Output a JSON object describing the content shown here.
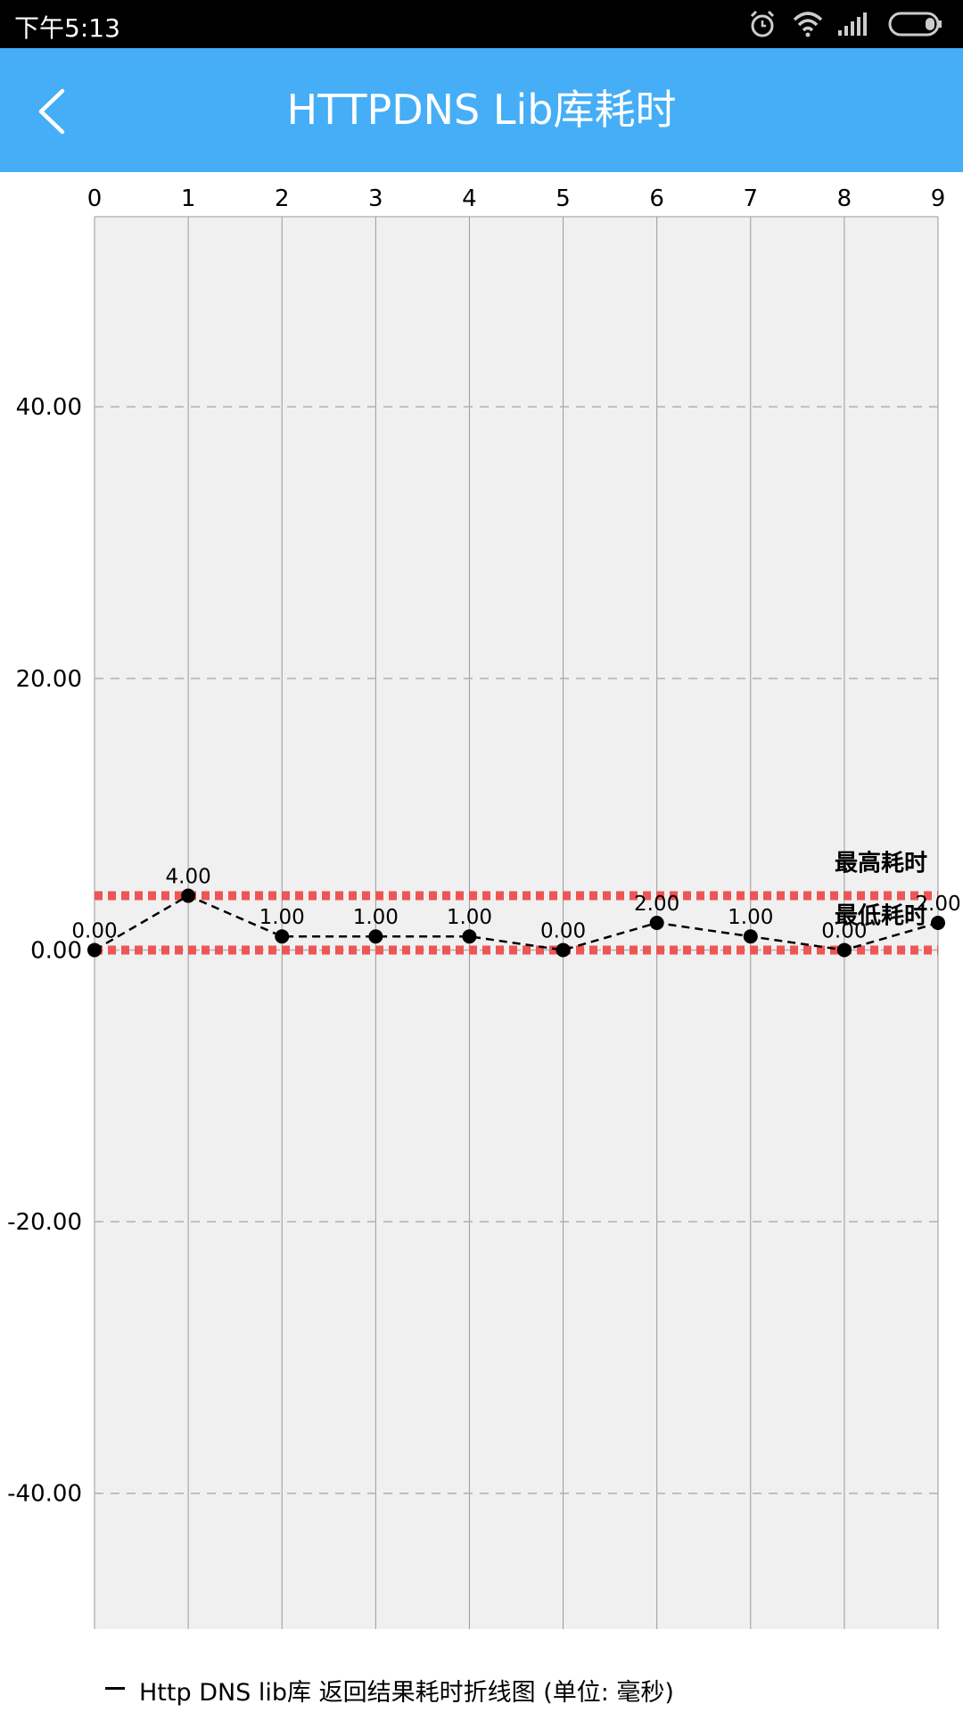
{
  "status_bar": {
    "time": "下午5:13",
    "icons": [
      "alarm-icon",
      "wifi-icon",
      "signal-icon",
      "battery-icon"
    ]
  },
  "app_bar": {
    "back_icon": "chevron-left-icon",
    "title": "HTTPDNS Lib库耗时"
  },
  "chart_data": {
    "type": "line",
    "x": [
      0,
      1,
      2,
      3,
      4,
      5,
      6,
      7,
      8,
      9
    ],
    "series": [
      {
        "name": "Http DNS lib库 返回结果耗时折线图 (单位: 毫秒)",
        "values": [
          0,
          4,
          1,
          1,
          1,
          0,
          2,
          1,
          0,
          2
        ],
        "labels": [
          "0.00",
          "4.00",
          "1.00",
          "1.00",
          "1.00",
          "0.00",
          "2.00",
          "1.00",
          "0.00",
          "2.00"
        ],
        "color": "#000000",
        "line_style": "dashed"
      }
    ],
    "x_ticks": [
      "0",
      "1",
      "2",
      "3",
      "4",
      "5",
      "6",
      "7",
      "8",
      "9"
    ],
    "y_ticks": [
      {
        "value": 40,
        "label": "40.00"
      },
      {
        "value": 20,
        "label": "20.00"
      },
      {
        "value": 0,
        "label": "0.00"
      },
      {
        "value": -20,
        "label": "-20.00"
      },
      {
        "value": -40,
        "label": "-40.00"
      }
    ],
    "xlim": [
      0,
      9
    ],
    "ylim": [
      -50,
      54
    ],
    "x_axis_position": "top",
    "grid": true,
    "limit_lines": [
      {
        "label": "最高耗时",
        "value": 4,
        "color": "#EE5555"
      },
      {
        "label": "最低耗时",
        "value": 0,
        "color": "#EE5555"
      }
    ],
    "plot_background": "#F0F0F0",
    "legend_position": "bottom-left"
  },
  "colors": {
    "app_bar": "#45AEF6",
    "status_bar": "#000000",
    "limit_line": "#EE5555"
  }
}
